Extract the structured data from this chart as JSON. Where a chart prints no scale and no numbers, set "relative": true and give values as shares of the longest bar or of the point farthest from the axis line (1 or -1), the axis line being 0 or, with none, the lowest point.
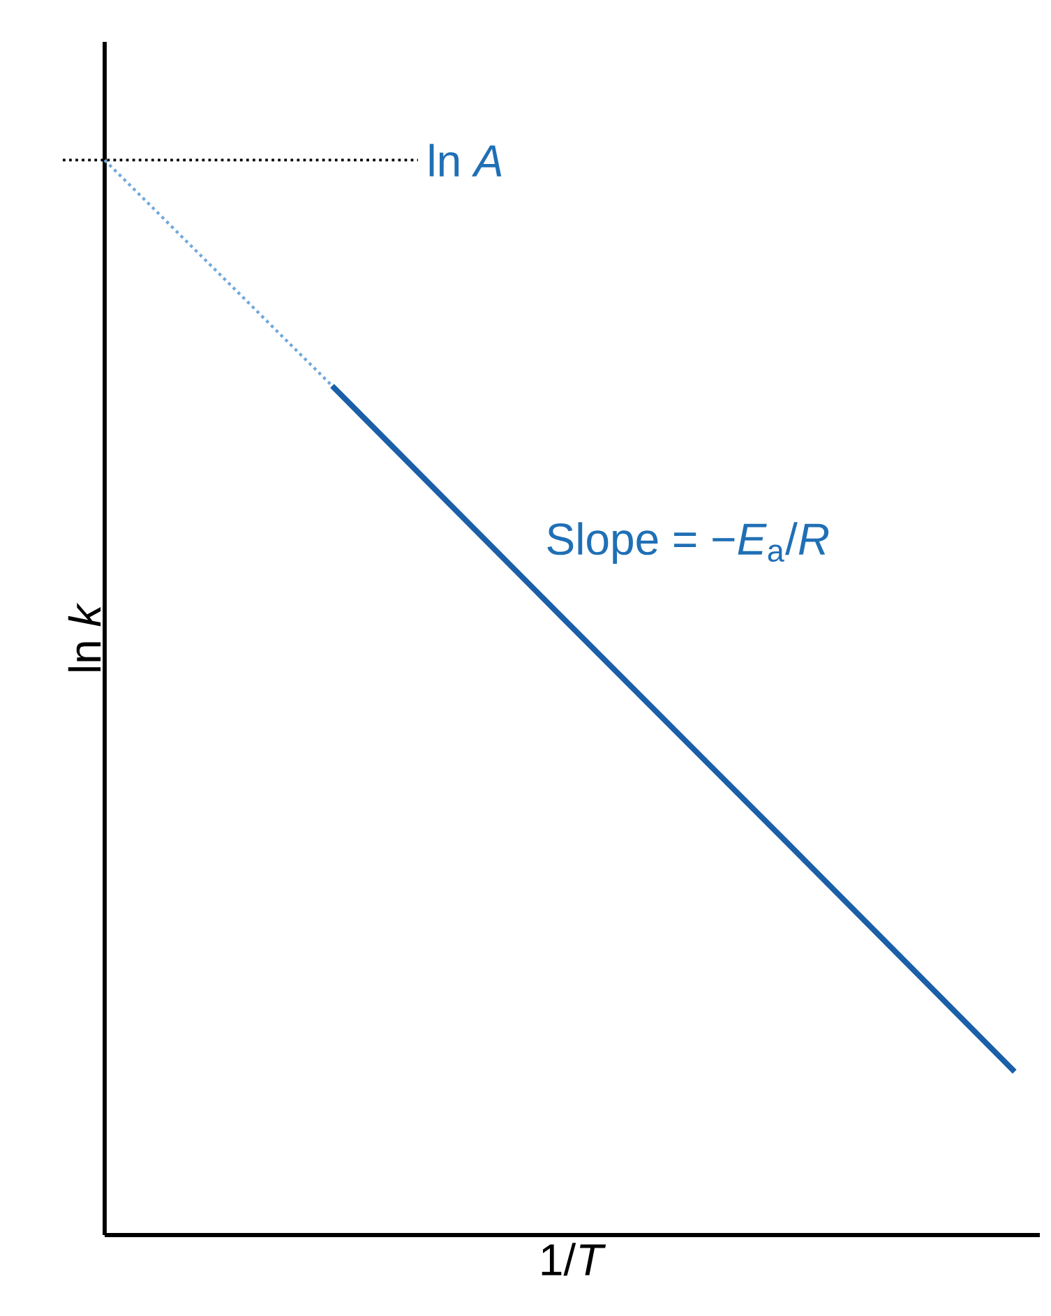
{
  "chart_data": {
    "type": "line",
    "relative": true,
    "xlabel": "1/*T*",
    "ylabel": "ln *k*",
    "tick_labels": false,
    "categories": [
      null,
      null,
      null,
      null,
      null
    ],
    "series": [
      {
        "values": [
          1.0,
          0.79,
          null,
          null,
          null
        ],
        "color": "#6fa8dc",
        "line_style": "dotted"
      },
      {
        "values": [
          null,
          0.79,
          0.577,
          0.365,
          0.152
        ],
        "color": "#1a5fa8",
        "line_style": "solid"
      }
    ],
    "ref_lines": [
      {
        "axis": "y",
        "value": 1.0,
        "label": "ln *A*",
        "color": "#000000",
        "line_style": "dotted"
      }
    ],
    "annotations": [
      "Slope = −*E*$_{a}$/*R*"
    ]
  }
}
